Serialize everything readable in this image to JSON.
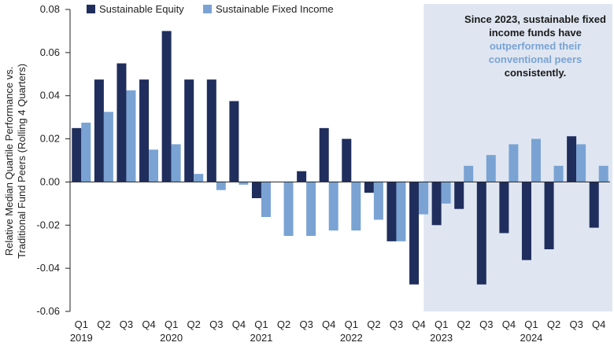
{
  "colors": {
    "equity": "#1f2e5c",
    "fixed_income": "#7aa3d4",
    "highlight_bg": "#dfe6f1",
    "axis": "#222222"
  },
  "legend": {
    "equity_label": "Sustainable Equity",
    "fixed_income_label": "Sustainable Fixed Income"
  },
  "callout": {
    "part1": "Since 2023, sustainable fixed income funds have ",
    "highlight": "outperformed their conventional peers",
    "part2": " consistently."
  },
  "chart_data": {
    "type": "bar",
    "ylabel_line1": "Relative Median Quartile Performance vs.",
    "ylabel_line2": "Traditional Fund Peers (Rolling 4 Quarters)",
    "ylim": [
      -0.06,
      0.08
    ],
    "yticks": [
      "0.08",
      "0.06",
      "0.04",
      "0.02",
      "0.00",
      "-0.02",
      "-0.04",
      "-0.06"
    ],
    "ytick_values": [
      0.08,
      0.06,
      0.04,
      0.02,
      0.0,
      -0.02,
      -0.04,
      -0.06
    ],
    "categories": [
      "Q1",
      "Q2",
      "Q3",
      "Q4",
      "Q1",
      "Q2",
      "Q3",
      "Q4",
      "Q1",
      "Q2",
      "Q3",
      "Q4",
      "Q1",
      "Q2",
      "Q3",
      "Q4",
      "Q1",
      "Q2",
      "Q3",
      "Q4",
      "Q1",
      "Q2",
      "Q3",
      "Q4"
    ],
    "years": [
      "2019",
      "2020",
      "2021",
      "2022",
      "2023",
      "2024"
    ],
    "highlight_start_index": 16,
    "series": [
      {
        "name": "Sustainable Equity",
        "values": [
          0.025,
          0.0475,
          0.055,
          0.0475,
          0.07,
          0.0475,
          0.0475,
          0.0375,
          -0.0075,
          0.0,
          0.005,
          0.025,
          0.02,
          -0.005,
          -0.0275,
          -0.0475,
          -0.02,
          -0.0125,
          -0.0475,
          -0.0237,
          -0.0362,
          -0.0312,
          0.0212,
          -0.0212
        ]
      },
      {
        "name": "Sustainable Fixed Income",
        "values": [
          0.0275,
          0.0325,
          0.0425,
          0.015,
          0.0175,
          0.00375,
          -0.00375,
          -0.00125,
          -0.01625,
          -0.025,
          -0.025,
          -0.0225,
          -0.0225,
          -0.0175,
          -0.0275,
          -0.015,
          -0.01,
          0.0075,
          0.0125,
          0.0175,
          0.02,
          0.0075,
          0.0175,
          0.0075
        ]
      }
    ]
  }
}
